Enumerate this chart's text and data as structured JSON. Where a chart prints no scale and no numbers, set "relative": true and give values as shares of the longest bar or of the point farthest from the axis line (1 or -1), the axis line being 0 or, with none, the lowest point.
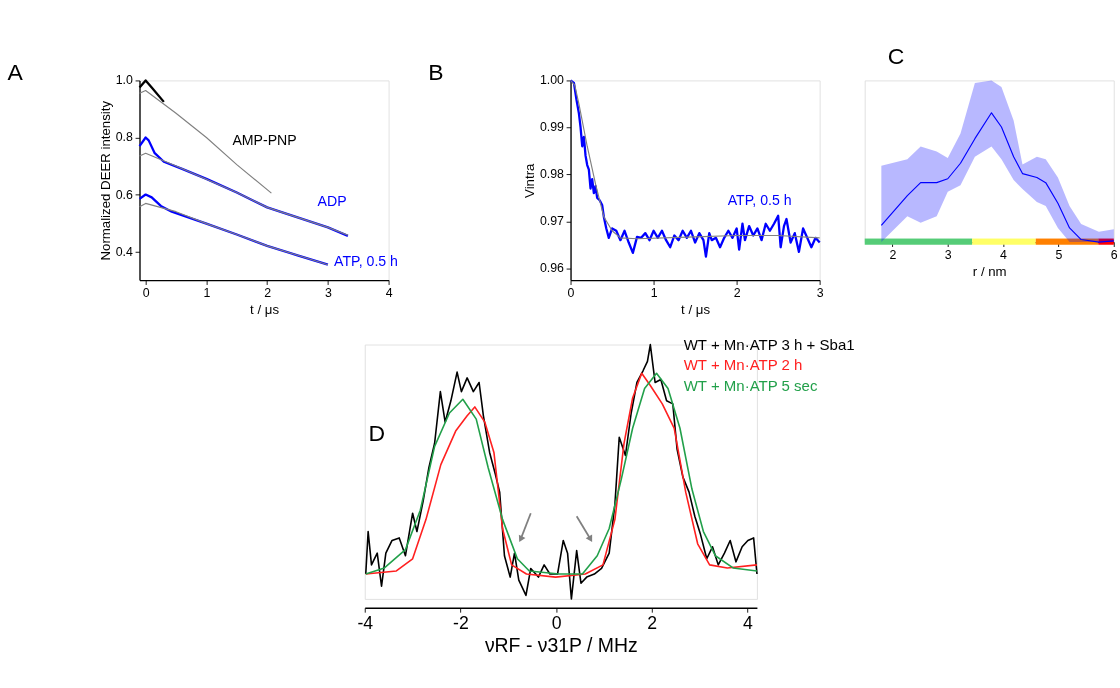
{
  "chart_data": [
    {
      "type": "line",
      "title": "A",
      "xlabel": "t / μs",
      "ylabel": "Normalized DEER intensity",
      "xlim": [
        -0.1,
        4
      ],
      "xticks": [
        0,
        1,
        2,
        3,
        4
      ],
      "ylim": [
        0.3,
        1.0
      ],
      "yticks": [
        0.4,
        0.6,
        0.8,
        {
          "value": 1,
          "label": "1.0"
        }
      ],
      "series": [
        {
          "name": "AMP-PNP",
          "color": "#000000",
          "x": [
            -0.1,
            0,
            0.1,
            0.3
          ],
          "values": [
            0.975,
            1.0,
            0.975,
            0.925
          ]
        },
        {
          "color": "#808080",
          "x": [
            -0.1,
            0,
            0.5,
            1,
            1.5,
            2.07
          ],
          "values": [
            0.955,
            0.965,
            0.885,
            0.8,
            0.705,
            0.605
          ]
        },
        {
          "name": "ADP",
          "color": "#0000ff",
          "x": [
            -0.1,
            0,
            0.05,
            0.15,
            0.3,
            0.6,
            1.0,
            1.5,
            2.0,
            2.5,
            3.0,
            3.33
          ],
          "values": [
            0.77,
            0.8,
            0.79,
            0.745,
            0.715,
            0.69,
            0.655,
            0.607,
            0.555,
            0.52,
            0.485,
            0.455
          ]
        },
        {
          "color": "#808080",
          "x": [
            -0.1,
            0,
            0.5,
            1,
            1.5,
            2,
            2.5,
            3,
            3.33
          ],
          "values": [
            0.735,
            0.745,
            0.7,
            0.654,
            0.607,
            0.555,
            0.52,
            0.485,
            0.457
          ]
        },
        {
          "name": "ATP, 0.5 h",
          "color": "#0000ff",
          "x": [
            -0.1,
            0,
            0.1,
            0.25,
            0.43,
            1,
            1.5,
            2,
            2.5,
            3
          ],
          "values": [
            0.585,
            0.6,
            0.59,
            0.56,
            0.54,
            0.498,
            0.46,
            0.42,
            0.387,
            0.354
          ]
        },
        {
          "color": "#808080",
          "x": [
            -0.1,
            0,
            0.5,
            1,
            1.5,
            2,
            2.5,
            3
          ],
          "values": [
            0.557,
            0.569,
            0.54,
            0.498,
            0.46,
            0.42,
            0.387,
            0.354
          ]
        }
      ]
    },
    {
      "type": "line",
      "title": "B",
      "xlabel": "t / μs",
      "ylabel": "Vintra",
      "xlim": [
        0,
        3
      ],
      "xticks": [
        0,
        1,
        2,
        3
      ],
      "ylim": [
        0.9575,
        1.0
      ],
      "yticks": [
        0.96,
        0.97,
        0.98,
        0.99,
        {
          "value": 1,
          "label": "1.00"
        }
      ],
      "series": [
        {
          "name": "ATP, 0.5 h",
          "color": "#0000ff",
          "x": [
            0,
            0.04,
            0.07,
            0.1,
            0.12,
            0.14,
            0.16,
            0.18,
            0.2,
            0.22,
            0.24,
            0.26,
            0.28,
            0.3,
            0.32,
            0.35,
            0.38,
            0.4,
            0.43,
            0.46,
            0.5,
            0.55,
            0.6,
            0.65,
            0.7,
            0.75,
            0.8,
            0.85,
            0.9,
            0.95,
            1.0,
            1.05,
            1.1,
            1.15,
            1.2,
            1.25,
            1.3,
            1.35,
            1.4,
            1.45,
            1.5,
            1.55,
            1.6,
            1.63,
            1.67,
            1.7,
            1.75,
            1.8,
            1.85,
            1.9,
            1.95,
            2.0,
            2.03,
            2.07,
            2.1,
            2.15,
            2.2,
            2.25,
            2.3,
            2.35,
            2.4,
            2.45,
            2.5,
            2.53,
            2.57,
            2.6,
            2.65,
            2.7,
            2.75,
            2.8,
            2.85,
            2.9,
            2.95,
            3.0
          ],
          "values": [
            1.0,
            0.9995,
            0.996,
            0.993,
            0.99,
            0.986,
            0.988,
            0.984,
            0.982,
            0.981,
            0.977,
            0.979,
            0.976,
            0.9775,
            0.975,
            0.9745,
            0.9735,
            0.971,
            0.9685,
            0.9665,
            0.9685,
            0.968,
            0.966,
            0.968,
            0.9655,
            0.9633,
            0.9667,
            0.9665,
            0.9675,
            0.966,
            0.968,
            0.9665,
            0.968,
            0.966,
            0.9645,
            0.967,
            0.966,
            0.968,
            0.9665,
            0.968,
            0.9655,
            0.9675,
            0.966,
            0.9625,
            0.9675,
            0.966,
            0.9665,
            0.9645,
            0.9665,
            0.968,
            0.9665,
            0.9685,
            0.964,
            0.9695,
            0.966,
            0.969,
            0.967,
            0.9685,
            0.966,
            0.9695,
            0.968,
            0.9695,
            0.9712,
            0.9645,
            0.969,
            0.9705,
            0.9655,
            0.9675,
            0.9635,
            0.9685,
            0.9665,
            0.9645,
            0.9665,
            0.9655
          ]
        },
        {
          "color": "#808080",
          "x": [
            0,
            0.05,
            0.1,
            0.2,
            0.3,
            0.4,
            0.5,
            0.6,
            0.8,
            1.5,
            2.0,
            2.5,
            3.0
          ],
          "values": [
            1.0,
            0.999,
            0.995,
            0.986,
            0.978,
            0.971,
            0.968,
            0.9665,
            0.9663,
            0.9667,
            0.967,
            0.967,
            0.9665
          ]
        }
      ]
    },
    {
      "type": "line",
      "title": "C",
      "xlabel": "r / nm",
      "xlim": [
        1.5,
        6
      ],
      "xticks": [
        2,
        3,
        4,
        5,
        6
      ],
      "relative": true,
      "tick_labels": "x",
      "series": [
        {
          "color": "#0000ff",
          "x": [
            1.8,
            2.27,
            2.51,
            2.8,
            3.0,
            3.23,
            3.49,
            3.79,
            3.97,
            4.19,
            4.35,
            4.61,
            4.77,
            4.99,
            5.2,
            5.41,
            5.73,
            6.0
          ],
          "values": [
            0.13,
            0.36,
            0.46,
            0.46,
            0.49,
            0.61,
            0.8,
            1.0,
            0.89,
            0.66,
            0.53,
            0.5,
            0.46,
            0.3,
            0.11,
            0.02,
            0,
            0.01
          ],
          "lower": [
            0,
            0.2,
            0.15,
            0.2,
            0.39,
            0.44,
            0.66,
            0.74,
            0.64,
            0.48,
            0.41,
            0.31,
            0.28,
            0.11,
            0,
            0,
            0,
            0
          ],
          "upper": [
            0.59,
            0.64,
            0.74,
            0.7,
            0.65,
            0.84,
            1.23,
            1.25,
            1.2,
            0.94,
            0.6,
            0.66,
            0.64,
            0.5,
            0.28,
            0.14,
            0.08,
            0.1
          ]
        }
      ],
      "bands": [
        {
          "axis": "x",
          "from": 1.5,
          "to": 3.44,
          "color": "#55cc77"
        },
        {
          "axis": "x",
          "from": 3.44,
          "to": 4.59,
          "color": "#ffff66"
        },
        {
          "axis": "x",
          "from": 4.59,
          "to": 5.72,
          "color": "#ff8000"
        },
        {
          "axis": "x",
          "from": 5.72,
          "to": 6.0,
          "color": "#ff0000"
        }
      ]
    },
    {
      "type": "line",
      "title": "D",
      "xlabel": "νRF - ν31P / MHz",
      "xlim": [
        -4,
        4.2
      ],
      "xticks": [
        -4,
        -2,
        0,
        2,
        4
      ],
      "relative": true,
      "tick_labels": "x",
      "series": [
        {
          "name": "WT + Mn·ATP 3 h + Sba1",
          "color": "#000000",
          "x": [
            -3.98,
            -3.93,
            -3.86,
            -3.74,
            -3.65,
            -3.56,
            -3.43,
            -3.28,
            -3.15,
            -3.0,
            -2.91,
            -2.78,
            -2.66,
            -2.54,
            -2.42,
            -2.32,
            -2.2,
            -2.07,
            -1.98,
            -1.86,
            -1.73,
            -1.61,
            -1.52,
            -1.39,
            -1.27,
            -1.18,
            -1.08,
            -0.96,
            -0.87,
            -0.78,
            -0.63,
            -0.53,
            -0.37,
            -0.25,
            -0.13,
            0.03,
            0.15,
            0.24,
            0.32,
            0.43,
            0.52,
            0.64,
            0.8,
            0.95,
            1.11,
            1.23,
            1.32,
            1.45,
            1.57,
            1.69,
            1.82,
            1.91,
            1.97,
            2.07,
            2.19,
            2.31,
            2.44,
            2.53,
            2.65,
            2.78,
            2.9,
            3.02,
            3.15,
            3.27,
            3.39,
            3.52,
            3.64,
            3.76,
            3.89,
            4.01,
            4.13,
            4.2
          ],
          "values": [
            0.098,
            0.265,
            0.134,
            0.18,
            0.05,
            0.18,
            0.23,
            0.24,
            0.17,
            0.337,
            0.265,
            0.385,
            0.516,
            0.612,
            0.815,
            0.695,
            0.779,
            0.892,
            0.815,
            0.869,
            0.815,
            0.851,
            0.72,
            0.576,
            0.49,
            0.42,
            0.17,
            0.086,
            0.18,
            0.074,
            0.014,
            0.12,
            0.086,
            0.134,
            0.098,
            0.098,
            0.23,
            0.18,
            0.0,
            0.19,
            0.062,
            0.086,
            0.098,
            0.12,
            0.18,
            0.373,
            0.636,
            0.564,
            0.731,
            0.851,
            0.898,
            0.934,
            1.0,
            0.851,
            0.863,
            0.779,
            0.767,
            0.588,
            0.48,
            0.42,
            0.325,
            0.253,
            0.158,
            0.205,
            0.134,
            0.18,
            0.23,
            0.146,
            0.205,
            0.23,
            0.24,
            0.098
          ]
        },
        {
          "name": "WT + Mn·ATP 2 h",
          "color": "#ff2020",
          "x": [
            -3.98,
            -3.34,
            -3.0,
            -2.72,
            -2.41,
            -2.1,
            -1.86,
            -1.7,
            -1.49,
            -1.3,
            -1.12,
            -0.93,
            -0.62,
            -0.01,
            0.61,
            0.98,
            1.23,
            1.42,
            1.6,
            1.79,
            1.97,
            2.22,
            2.47,
            2.71,
            2.96,
            3.21,
            3.58,
            4.2
          ],
          "values": [
            0.098,
            0.11,
            0.158,
            0.313,
            0.528,
            0.66,
            0.72,
            0.755,
            0.695,
            0.576,
            0.277,
            0.134,
            0.098,
            0.086,
            0.098,
            0.134,
            0.313,
            0.612,
            0.79,
            0.887,
            0.839,
            0.767,
            0.671,
            0.42,
            0.217,
            0.134,
            0.122,
            0.134
          ]
        },
        {
          "name": "WT + Mn·ATP 5 sec",
          "color": "#22a04a",
          "x": [
            -3.98,
            -3.59,
            -3.15,
            -2.84,
            -2.54,
            -2.23,
            -1.95,
            -1.67,
            -1.42,
            -1.12,
            -0.81,
            -0.56,
            0.06,
            0.55,
            0.86,
            1.11,
            1.36,
            1.6,
            1.85,
            2.1,
            2.34,
            2.59,
            2.84,
            3.08,
            3.33,
            3.7,
            4.2
          ],
          "values": [
            0.098,
            0.122,
            0.194,
            0.349,
            0.6,
            0.731,
            0.785,
            0.707,
            0.516,
            0.313,
            0.158,
            0.11,
            0.098,
            0.098,
            0.17,
            0.277,
            0.468,
            0.671,
            0.827,
            0.887,
            0.827,
            0.671,
            0.432,
            0.265,
            0.17,
            0.122,
            0.11
          ]
        }
      ]
    }
  ]
}
